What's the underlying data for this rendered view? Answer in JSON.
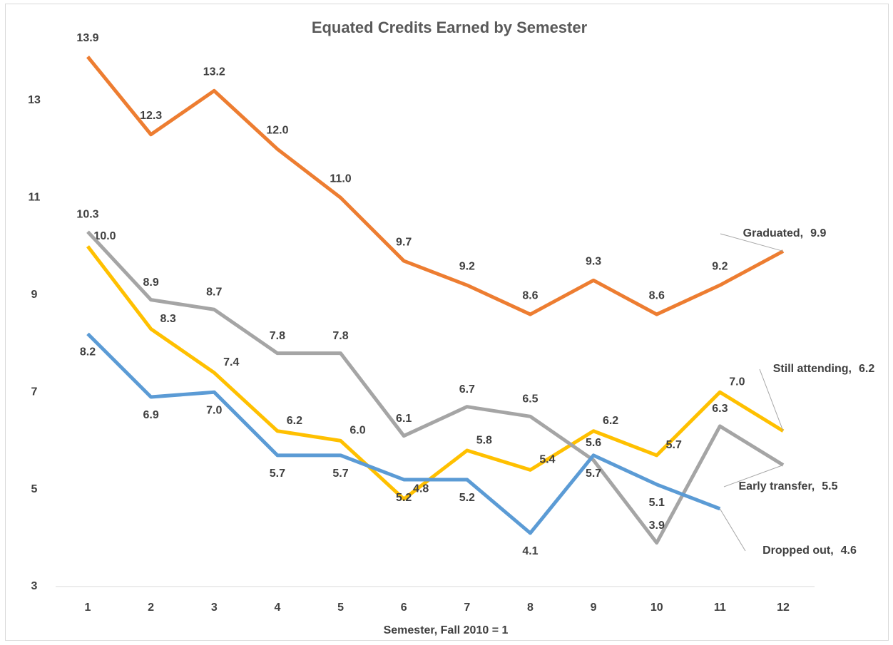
{
  "chart_data": {
    "type": "line",
    "title": "Equated Credits Earned by Semester",
    "x_label": "Semester, Fall 2010 = 1",
    "categories": [
      "1",
      "2",
      "3",
      "4",
      "5",
      "6",
      "7",
      "8",
      "9",
      "10",
      "11",
      "12"
    ],
    "ylim": [
      3,
      14.5
    ],
    "yticks": [
      3,
      5,
      7,
      9,
      11,
      13
    ],
    "grid": false,
    "end_label_separator": ",",
    "series": [
      {
        "name": "Graduated",
        "color": "#ED7D31",
        "values": [
          13.9,
          12.3,
          13.2,
          12.0,
          11.0,
          9.7,
          9.2,
          8.6,
          9.3,
          8.6,
          9.2,
          9.9
        ],
        "value_labels": [
          "13.9",
          "12.3",
          "13.2",
          "12.0",
          "11.0",
          "9.7",
          "9.2",
          "8.6",
          "9.3",
          "8.6",
          "9.2",
          "9.9"
        ]
      },
      {
        "name": "Still attending",
        "color": "#FFC000",
        "values": [
          10.0,
          8.3,
          7.4,
          6.2,
          6.0,
          4.8,
          5.8,
          5.4,
          6.2,
          5.7,
          7.0,
          6.2
        ],
        "value_labels": [
          "10.0",
          "8.3",
          "7.4",
          "6.2",
          "6.0",
          "4.8",
          "5.8",
          "5.4",
          "6.2",
          "5.7",
          "7.0",
          "6.2"
        ]
      },
      {
        "name": "Early transfer",
        "color": "#A5A5A5",
        "values": [
          10.3,
          8.9,
          8.7,
          7.8,
          7.8,
          6.1,
          6.7,
          6.5,
          5.6,
          3.9,
          6.3,
          5.5
        ],
        "value_labels": [
          "10.3",
          "8.9",
          "8.7",
          "7.8",
          "7.8",
          "6.1",
          "6.7",
          "6.5",
          "5.6",
          "3.9",
          "6.3",
          "5.5"
        ]
      },
      {
        "name": "Dropped out",
        "color": "#5B9BD5",
        "values": [
          8.2,
          6.9,
          7.0,
          5.7,
          5.7,
          5.2,
          5.2,
          4.1,
          5.7,
          5.1,
          4.6,
          null
        ],
        "value_labels": [
          "8.2",
          "6.9",
          "7.0",
          "5.7",
          "5.7",
          "5.2",
          "5.2",
          "4.1",
          "5.7",
          "5.1",
          "4.6",
          null
        ]
      }
    ]
  }
}
